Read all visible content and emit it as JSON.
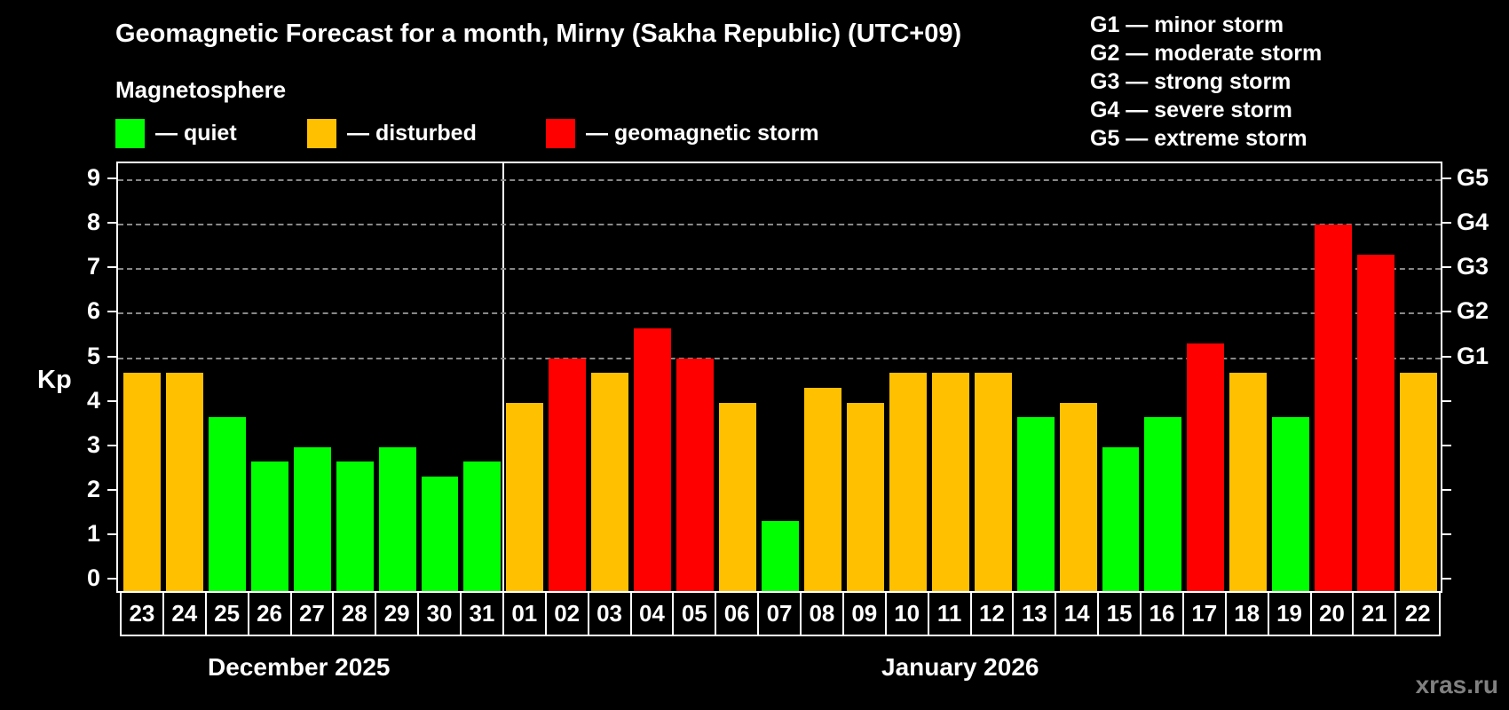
{
  "title": "Geomagnetic Forecast for a month, Mirny (Sakha Republic) (UTC+09)",
  "magnetosphere": {
    "heading": "Magnetosphere",
    "legend": [
      {
        "label": "— quiet",
        "color": "#00ff00"
      },
      {
        "label": "— disturbed",
        "color": "#ffc000"
      },
      {
        "label": "— geomagnetic storm",
        "color": "#ff0000"
      }
    ]
  },
  "storm_scale": [
    "G1 — minor storm",
    "G2 — moderate storm",
    "G3 — strong storm",
    "G4 — severe storm",
    "G5 — extreme storm"
  ],
  "axes": {
    "ylabel": "Kp",
    "yticks": [
      "0",
      "1",
      "2",
      "3",
      "4",
      "5",
      "6",
      "7",
      "8",
      "9"
    ],
    "right_ticks": [
      {
        "kp": 5,
        "label": "G1"
      },
      {
        "kp": 6,
        "label": "G2"
      },
      {
        "kp": 7,
        "label": "G3"
      },
      {
        "kp": 8,
        "label": "G4"
      },
      {
        "kp": 9,
        "label": "G5"
      }
    ]
  },
  "months": [
    {
      "label": "December 2025",
      "days": 9
    },
    {
      "label": "January 2026",
      "days": 22
    }
  ],
  "watermark": "xras.ru",
  "colors": {
    "quiet": "#00ff00",
    "disturbed": "#ffc000",
    "storm": "#ff0000",
    "grid": "#888888"
  },
  "chart_data": {
    "type": "bar",
    "title": "Geomagnetic Forecast for a month, Mirny (Sakha Republic) (UTC+09)",
    "xlabel": "",
    "ylabel": "Kp",
    "ylim": [
      0,
      9
    ],
    "grid": true,
    "categories": [
      "23",
      "24",
      "25",
      "26",
      "27",
      "28",
      "29",
      "30",
      "31",
      "01",
      "02",
      "03",
      "04",
      "05",
      "06",
      "07",
      "08",
      "09",
      "10",
      "11",
      "12",
      "13",
      "14",
      "15",
      "16",
      "17",
      "18",
      "19",
      "20",
      "21",
      "22"
    ],
    "values": [
      4.67,
      4.67,
      3.67,
      2.67,
      3.0,
      2.67,
      3.0,
      2.33,
      2.67,
      4.0,
      5.0,
      4.67,
      5.67,
      5.0,
      4.0,
      1.33,
      4.33,
      4.0,
      4.67,
      4.67,
      4.67,
      3.67,
      4.0,
      3.0,
      3.67,
      5.33,
      4.67,
      3.67,
      8.0,
      7.33,
      4.67
    ],
    "status": [
      "disturbed",
      "disturbed",
      "quiet",
      "quiet",
      "quiet",
      "quiet",
      "quiet",
      "quiet",
      "quiet",
      "disturbed",
      "storm",
      "disturbed",
      "storm",
      "storm",
      "disturbed",
      "quiet",
      "disturbed",
      "disturbed",
      "disturbed",
      "disturbed",
      "disturbed",
      "quiet",
      "disturbed",
      "quiet",
      "quiet",
      "storm",
      "disturbed",
      "quiet",
      "storm",
      "storm",
      "disturbed"
    ],
    "month_groups": [
      {
        "label": "December 2025",
        "range": [
          "23",
          "31"
        ]
      },
      {
        "label": "January 2026",
        "range": [
          "01",
          "22"
        ]
      }
    ],
    "right_axis": {
      "G1": 5,
      "G2": 6,
      "G3": 7,
      "G4": 8,
      "G5": 9
    },
    "legend": [
      "quiet",
      "disturbed",
      "geomagnetic storm"
    ]
  }
}
